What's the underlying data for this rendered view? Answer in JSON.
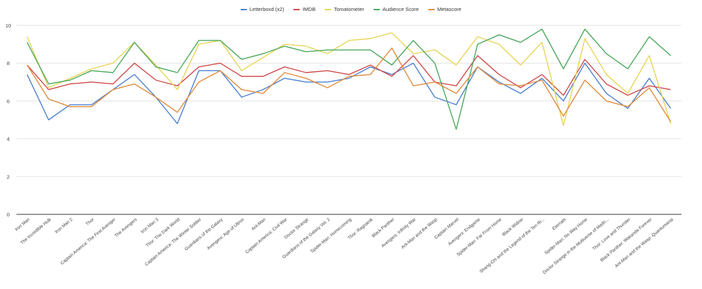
{
  "chart_data": {
    "type": "line",
    "title": "",
    "xlabel": "",
    "ylabel": "",
    "ylim": [
      0,
      10
    ],
    "yticks": [
      0,
      2,
      4,
      6,
      8,
      10
    ],
    "grid": true,
    "legend_position": "top",
    "categories": [
      "Iron Man",
      "The Incredible Hulk",
      "Iron Man 2",
      "Thor",
      "Captain America: The First Avenger",
      "The Avengers",
      "Iron Man 3",
      "Thor: The Dark World",
      "Captain America: The Winter Soldier",
      "Guardians of the Galaxy",
      "Avengers: Age of Ultron",
      "Ant-Man",
      "Captain America: Civil War",
      "Doctor Strange",
      "Guardians of the Galaxy Vol. 2",
      "Spider-Man: Homecoming",
      "Thor: Ragnarok",
      "Black Panther",
      "Avengers: Infinity War",
      "Ant-Man and the Wasp",
      "Captain Marvel",
      "Avengers: Endgame",
      "Spider-Man: Far From Home",
      "Black Widow",
      "Shang-Chi and the Legend of the Ten Ri...",
      "Eternals",
      "Spider-Man: No Way Home",
      "Doctor Strange in the Multiverse of Madn...",
      "Thor: Love and Thunder",
      "Black Panther: Wakanda Forever",
      "Ant-Man and the Wasp: Quantumania"
    ],
    "series": [
      {
        "name": "Letterboxd (x2)",
        "color": "#4a7fd0",
        "values": [
          7.4,
          5.0,
          5.8,
          5.8,
          6.6,
          7.4,
          6.2,
          4.8,
          7.6,
          7.6,
          6.2,
          6.6,
          7.2,
          7.0,
          7.0,
          7.2,
          7.8,
          7.4,
          8.0,
          6.2,
          5.8,
          7.8,
          7.0,
          6.4,
          7.2,
          6.0,
          8.0,
          6.4,
          5.6,
          7.2,
          5.6
        ]
      },
      {
        "name": "IMDB",
        "color": "#d04848",
        "values": [
          7.9,
          6.6,
          6.9,
          7.0,
          6.9,
          8.0,
          7.1,
          6.8,
          7.8,
          8.0,
          7.3,
          7.3,
          7.8,
          7.5,
          7.6,
          7.4,
          7.9,
          7.3,
          8.4,
          7.0,
          6.8,
          8.4,
          7.4,
          6.7,
          7.4,
          6.3,
          8.2,
          6.9,
          6.3,
          6.8,
          6.6
        ]
      },
      {
        "name": "Tomatometer",
        "color": "#e6d454",
        "values": [
          9.4,
          6.7,
          7.2,
          7.7,
          8.0,
          9.1,
          7.9,
          6.6,
          9.0,
          9.2,
          7.6,
          8.3,
          9.0,
          8.9,
          8.5,
          9.2,
          9.3,
          9.6,
          8.5,
          8.7,
          7.9,
          9.4,
          9.0,
          7.9,
          9.1,
          4.7,
          9.3,
          7.4,
          6.4,
          8.4,
          4.8
        ]
      },
      {
        "name": "Audience Score",
        "color": "#4aa85c",
        "values": [
          9.1,
          6.9,
          7.1,
          7.6,
          7.5,
          9.1,
          7.8,
          7.5,
          9.2,
          9.2,
          8.2,
          8.5,
          8.9,
          8.6,
          8.7,
          8.7,
          8.7,
          7.9,
          9.2,
          8.0,
          4.5,
          9.0,
          9.5,
          9.1,
          9.8,
          7.7,
          9.8,
          8.5,
          7.7,
          9.4,
          8.4
        ]
      },
      {
        "name": "Metascore",
        "color": "#e08a3c",
        "values": [
          7.9,
          6.1,
          5.7,
          5.7,
          6.6,
          6.9,
          6.2,
          5.4,
          7.0,
          7.6,
          6.6,
          6.4,
          7.5,
          7.2,
          6.7,
          7.3,
          7.4,
          8.8,
          6.8,
          7.0,
          6.4,
          7.8,
          6.9,
          6.8,
          7.1,
          5.2,
          7.1,
          6.0,
          5.7,
          6.7,
          4.9
        ]
      }
    ]
  }
}
